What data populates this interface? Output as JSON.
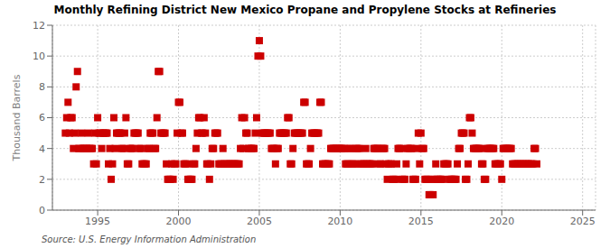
{
  "chart_data": {
    "type": "scatter",
    "title": "Monthly Refining District New Mexico Propane and Propylene Stocks at Refineries",
    "ylabel": "Thousand Barrels",
    "annotations": [
      "Source: U.S. Energy Information Administration"
    ],
    "color": "#cc0000",
    "marker": "square",
    "grid": true,
    "xlim": [
      1992.2,
      2025.8
    ],
    "ylim": [
      0,
      12
    ],
    "xticks": [
      1995,
      2000,
      2005,
      2010,
      2015,
      2020,
      2025
    ],
    "yticks": [
      0,
      2,
      4,
      6,
      8,
      10,
      12
    ],
    "x": [
      1993.0,
      1993.083,
      1993.167,
      1993.25,
      1993.333,
      1993.417,
      1993.5,
      1993.583,
      1993.667,
      1993.75,
      1993.833,
      1993.917,
      1994.0,
      1994.083,
      1994.167,
      1994.25,
      1994.333,
      1994.417,
      1994.5,
      1994.583,
      1994.667,
      1994.75,
      1994.833,
      1994.917,
      1995.0,
      1995.083,
      1995.167,
      1995.25,
      1995.333,
      1995.417,
      1995.5,
      1995.583,
      1995.667,
      1995.75,
      1995.833,
      1995.917,
      1996.0,
      1996.083,
      1996.167,
      1996.25,
      1996.333,
      1996.417,
      1996.5,
      1996.583,
      1996.667,
      1996.75,
      1996.833,
      1996.917,
      1997.0,
      1997.083,
      1997.167,
      1997.25,
      1997.333,
      1997.417,
      1997.5,
      1997.583,
      1997.667,
      1997.75,
      1997.833,
      1997.917,
      1998.0,
      1998.083,
      1998.167,
      1998.25,
      1998.333,
      1998.417,
      1998.5,
      1998.583,
      1998.667,
      1998.75,
      1998.833,
      1998.917,
      1999.0,
      1999.083,
      1999.167,
      1999.25,
      1999.333,
      1999.417,
      1999.5,
      1999.583,
      1999.667,
      1999.75,
      1999.833,
      1999.917,
      2000.0,
      2000.083,
      2000.167,
      2000.25,
      2000.333,
      2000.417,
      2000.5,
      2000.583,
      2000.667,
      2000.75,
      2000.833,
      2000.917,
      2001.0,
      2001.083,
      2001.167,
      2001.25,
      2001.333,
      2001.417,
      2001.5,
      2001.583,
      2001.667,
      2001.75,
      2001.833,
      2001.917,
      2002.0,
      2002.083,
      2002.167,
      2002.25,
      2002.333,
      2002.417,
      2002.5,
      2002.583,
      2002.667,
      2002.75,
      2002.833,
      2002.917,
      2003.0,
      2003.083,
      2003.167,
      2003.25,
      2003.333,
      2003.417,
      2003.5,
      2003.583,
      2003.667,
      2003.75,
      2003.833,
      2003.917,
      2004.0,
      2004.083,
      2004.167,
      2004.25,
      2004.333,
      2004.417,
      2004.5,
      2004.583,
      2004.667,
      2004.75,
      2004.833,
      2004.917,
      2005.0,
      2005.083,
      2005.167,
      2005.25,
      2005.333,
      2005.417,
      2005.5,
      2005.583,
      2005.667,
      2005.75,
      2005.833,
      2005.917,
      2006.0,
      2006.083,
      2006.167,
      2006.25,
      2006.333,
      2006.417,
      2006.5,
      2006.583,
      2006.667,
      2006.75,
      2006.833,
      2006.917,
      2007.0,
      2007.083,
      2007.167,
      2007.25,
      2007.333,
      2007.417,
      2007.5,
      2007.583,
      2007.667,
      2007.75,
      2007.833,
      2007.917,
      2008.0,
      2008.083,
      2008.167,
      2008.25,
      2008.333,
      2008.417,
      2008.5,
      2008.583,
      2008.667,
      2008.75,
      2008.833,
      2008.917,
      2009.0,
      2009.083,
      2009.167,
      2009.25,
      2009.333,
      2009.417,
      2009.5,
      2009.583,
      2009.667,
      2009.75,
      2009.833,
      2009.917,
      2010.0,
      2010.083,
      2010.167,
      2010.25,
      2010.333,
      2010.417,
      2010.5,
      2010.583,
      2010.667,
      2010.75,
      2010.833,
      2010.917,
      2011.0,
      2011.083,
      2011.167,
      2011.25,
      2011.333,
      2011.417,
      2011.5,
      2011.583,
      2011.667,
      2011.75,
      2011.833,
      2011.917,
      2012.0,
      2012.083,
      2012.167,
      2012.25,
      2012.333,
      2012.417,
      2012.5,
      2012.583,
      2012.667,
      2012.75,
      2012.833,
      2012.917,
      2013.0,
      2013.083,
      2013.167,
      2013.25,
      2013.333,
      2013.417,
      2013.5,
      2013.583,
      2013.667,
      2013.75,
      2013.833,
      2013.917,
      2014.0,
      2014.083,
      2014.167,
      2014.25,
      2014.333,
      2014.417,
      2014.5,
      2014.583,
      2014.667,
      2014.75,
      2014.833,
      2014.917,
      2015.0,
      2015.083,
      2015.167,
      2015.25,
      2015.333,
      2015.417,
      2015.5,
      2015.583,
      2015.667,
      2015.75,
      2015.833,
      2015.917,
      2016.0,
      2016.083,
      2016.167,
      2016.25,
      2016.333,
      2016.417,
      2016.5,
      2016.583,
      2016.667,
      2016.75,
      2016.833,
      2016.917,
      2017.0,
      2017.083,
      2017.167,
      2017.25,
      2017.333,
      2017.417,
      2017.5,
      2017.583,
      2017.667,
      2017.75,
      2017.833,
      2017.917,
      2018.0,
      2018.083,
      2018.167,
      2018.25,
      2018.333,
      2018.417,
      2018.5,
      2018.583,
      2018.667,
      2018.75,
      2018.833,
      2018.917,
      2019.0,
      2019.083,
      2019.167,
      2019.25,
      2019.333,
      2019.417,
      2019.5,
      2019.583,
      2019.667,
      2019.75,
      2019.833,
      2019.917,
      2020.0,
      2020.083,
      2020.167,
      2020.25,
      2020.333,
      2020.417,
      2020.5,
      2020.583,
      2020.667,
      2020.75,
      2020.833,
      2020.917,
      2021.0,
      2021.083,
      2021.167,
      2021.25,
      2021.333,
      2021.417,
      2021.5,
      2021.583,
      2021.667,
      2021.75,
      2021.833,
      2021.917,
      2022.0,
      2022.083,
      2022.167
    ],
    "values": [
      5,
      6,
      7,
      5,
      6,
      6,
      4,
      5,
      8,
      9,
      4,
      4,
      5,
      4,
      4,
      4,
      4,
      5,
      4,
      4,
      4,
      3,
      5,
      3,
      6,
      5,
      5,
      4,
      5,
      5,
      5,
      5,
      3,
      4,
      2,
      3,
      6,
      4,
      5,
      5,
      5,
      5,
      4,
      4,
      5,
      6,
      3,
      3,
      4,
      4,
      4,
      5,
      5,
      5,
      5,
      4,
      4,
      3,
      3,
      3,
      3,
      4,
      4,
      5,
      5,
      5,
      4,
      4,
      6,
      9,
      9,
      5,
      5,
      5,
      5,
      3,
      2,
      2,
      2,
      3,
      2,
      3,
      3,
      5,
      7,
      7,
      5,
      5,
      3,
      3,
      3,
      2,
      2,
      2,
      2,
      3,
      3,
      4,
      5,
      6,
      6,
      5,
      5,
      6,
      5,
      3,
      3,
      2,
      3,
      4,
      4,
      5,
      5,
      5,
      3,
      3,
      3,
      4,
      3,
      3,
      3,
      3,
      3,
      3,
      3,
      3,
      3,
      3,
      3,
      3,
      4,
      6,
      4,
      6,
      5,
      5,
      4,
      4,
      4,
      4,
      4,
      5,
      6,
      10,
      11,
      10,
      5,
      5,
      5,
      5,
      5,
      5,
      5,
      4,
      4,
      4,
      3,
      4,
      4,
      5,
      5,
      5,
      5,
      5,
      5,
      6,
      6,
      3,
      3,
      4,
      5,
      5,
      5,
      5,
      5,
      5,
      5,
      7,
      7,
      3,
      3,
      3,
      4,
      5,
      5,
      5,
      5,
      5,
      5,
      7,
      7,
      3,
      3,
      3,
      3,
      3,
      3,
      4,
      4,
      4,
      4,
      4,
      4,
      4,
      4,
      4,
      4,
      4,
      3,
      3,
      3,
      4,
      4,
      3,
      3,
      3,
      4,
      4,
      4,
      3,
      3,
      3,
      3,
      4,
      3,
      3,
      3,
      3,
      3,
      4,
      4,
      4,
      4,
      3,
      3,
      4,
      4,
      4,
      3,
      2,
      3,
      3,
      3,
      2,
      2,
      2,
      3,
      4,
      4,
      4,
      2,
      2,
      2,
      3,
      4,
      4,
      4,
      4,
      2,
      2,
      2,
      4,
      5,
      3,
      5,
      4,
      4,
      2,
      2,
      2,
      1,
      1,
      2,
      1,
      2,
      3,
      2,
      2,
      2,
      2,
      2,
      3,
      3,
      3,
      3,
      2,
      2,
      2,
      2,
      2,
      2,
      3,
      4,
      4,
      5,
      5,
      5,
      2,
      2,
      3,
      6,
      6,
      5,
      4,
      4,
      4,
      4,
      4,
      4,
      3,
      3,
      2,
      2,
      4,
      4,
      4,
      4,
      4,
      4,
      3,
      3,
      3,
      3,
      3,
      2,
      4,
      4,
      4,
      4,
      4,
      4,
      4,
      3,
      3,
      3,
      3,
      3,
      3,
      3,
      3,
      3,
      3,
      3,
      3,
      3,
      3,
      3,
      3,
      4,
      4,
      3
    ]
  }
}
